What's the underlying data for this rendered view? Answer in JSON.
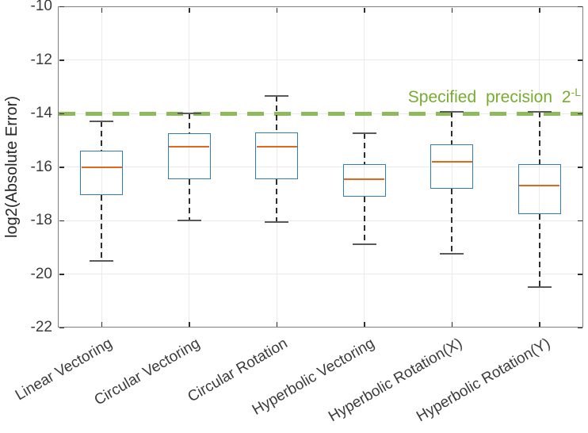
{
  "chart_data": {
    "type": "boxplot",
    "title": "",
    "xlabel": "",
    "ylabel": "log2(Absolute Error)",
    "ylim": [
      -22,
      -10
    ],
    "yticks": [
      -10,
      -12,
      -14,
      -16,
      -18,
      -20,
      -22
    ],
    "ytick_labels": [
      "-10",
      "-12",
      "-14",
      "-16",
      "-18",
      "-20",
      "-22"
    ],
    "grid": true,
    "legend": "none",
    "categories": [
      "Linear Vectoring",
      "Circular Vectoring",
      "Circular Rotation",
      "Hyperbolic Vectoring",
      "Hyperbolic Rotation(X)",
      "Hyperbolic Rotation(Y)"
    ],
    "boxes": [
      {
        "category": "Linear Vectoring",
        "whisker_low": -19.5,
        "q1": -17.05,
        "median": -16.0,
        "q3": -15.4,
        "whisker_high": -14.3
      },
      {
        "category": "Circular Vectoring",
        "whisker_low": -18.0,
        "q1": -16.45,
        "median": -15.25,
        "q3": -14.75,
        "whisker_high": -14.0
      },
      {
        "category": "Circular Rotation",
        "whisker_low": -18.05,
        "q1": -16.45,
        "median": -15.25,
        "q3": -14.7,
        "whisker_high": -13.35
      },
      {
        "category": "Hyperbolic Vectoring",
        "whisker_low": -18.9,
        "q1": -17.1,
        "median": -16.45,
        "q3": -15.9,
        "whisker_high": -14.75
      },
      {
        "category": "Hyperbolic Rotation(X)",
        "whisker_low": -19.25,
        "q1": -16.8,
        "median": -15.8,
        "q3": -15.15,
        "whisker_high": -13.95
      },
      {
        "category": "Hyperbolic Rotation(Y)",
        "whisker_low": -20.5,
        "q1": -17.75,
        "median": -16.7,
        "q3": -15.9,
        "whisker_high": -13.95
      }
    ],
    "reference_line": {
      "value": -14,
      "style": "dashed",
      "label": "Specified precision 2^-L"
    }
  },
  "annotation": {
    "text": "Specified precision 2",
    "superscript": "-L"
  },
  "colors": {
    "box_edge": "#2e7dbe",
    "median": "#e2671d",
    "whisker": "#2e2e2e",
    "cap": "#5a5a5a",
    "reference_line": "#8dba5b",
    "annotation_text": "#77ac30",
    "grid": "#eaeaea",
    "axis_frame": "#7f7f7f",
    "tick_mark": "#2e2e2e",
    "tick_label": "#3b3b3b"
  }
}
